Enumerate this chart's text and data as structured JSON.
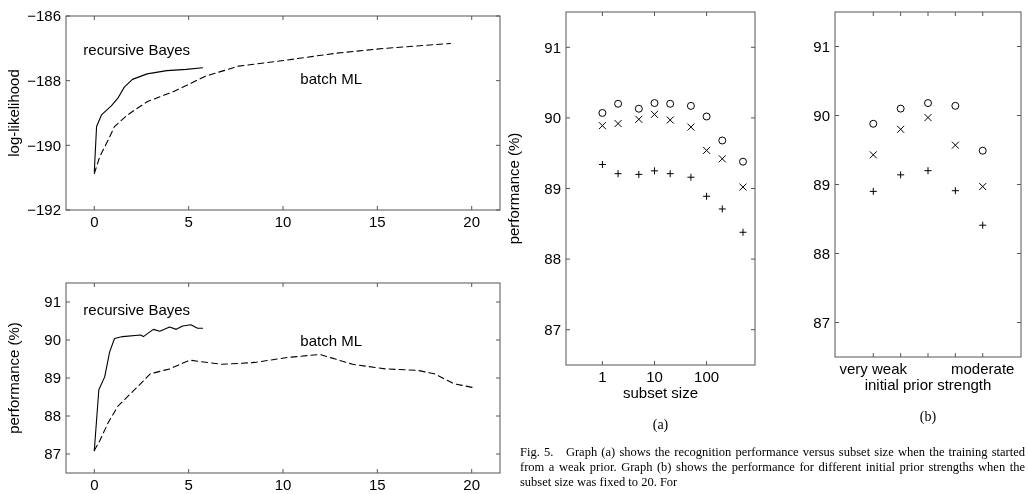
{
  "chart_data": [
    {
      "type": "line",
      "ylabel": "log-likelihood",
      "xlim": [
        -1.5,
        21.5
      ],
      "xticks": [
        0,
        5,
        10,
        15,
        20
      ],
      "ylim": [
        -192,
        -186
      ],
      "yticks": [
        -192,
        -190,
        -188,
        -186
      ],
      "series": [
        {
          "name": "recursive Bayes",
          "color": "#000000",
          "line_style": "solid",
          "x": [
            0,
            0.12,
            0.38,
            0.9,
            1.24,
            1.59,
            2.02,
            2.8,
            3.84,
            4.87,
            5.74
          ],
          "values": [
            -190.81,
            -189.42,
            -189.06,
            -188.78,
            -188.55,
            -188.2,
            -187.96,
            -187.79,
            -187.69,
            -187.65,
            -187.6
          ]
        },
        {
          "name": "batch ML",
          "color": "#000000",
          "line_style": "dashed",
          "x": [
            0,
            0.29,
            0.73,
            1.07,
            1.76,
            2.8,
            4.18,
            5.91,
            7.64,
            10.23,
            12.83,
            15.42,
            18.88
          ],
          "values": [
            -190.87,
            -190.35,
            -189.84,
            -189.42,
            -189.06,
            -188.65,
            -188.34,
            -187.86,
            -187.55,
            -187.36,
            -187.15,
            -187.0,
            -186.85
          ]
        }
      ]
    },
    {
      "type": "line",
      "ylabel": "performance (%)",
      "xlim": [
        -1.5,
        21.5
      ],
      "xticks": [
        0,
        5,
        10,
        15,
        20
      ],
      "ylim": [
        86.5,
        91.5
      ],
      "yticks": [
        87,
        88,
        89,
        90,
        91
      ],
      "series": [
        {
          "name": "recursive Bayes",
          "color": "#000000",
          "line_style": "solid",
          "x": [
            0,
            0.24,
            0.55,
            0.81,
            1.07,
            1.5,
            2.45,
            2.6,
            3.13,
            3.47,
            3.99,
            4.34,
            4.68,
            5.12,
            5.47,
            5.74
          ],
          "values": [
            87.09,
            88.69,
            89.03,
            89.68,
            90.04,
            90.09,
            90.13,
            90.09,
            90.28,
            90.23,
            90.34,
            90.28,
            90.37,
            90.4,
            90.31,
            90.31
          ]
        },
        {
          "name": "batch ML",
          "color": "#000000",
          "line_style": "dashed",
          "x": [
            0,
            0.29,
            0.73,
            1.24,
            2.11,
            2.97,
            4.0,
            5.05,
            6.78,
            8.51,
            10.24,
            11.96,
            13.69,
            15.42,
            17.15,
            18.02,
            19.06,
            20.06
          ],
          "values": [
            87.09,
            87.35,
            87.82,
            88.25,
            88.68,
            89.11,
            89.24,
            89.47,
            89.36,
            89.41,
            89.54,
            89.62,
            89.36,
            89.24,
            89.2,
            89.11,
            88.85,
            88.75
          ]
        }
      ]
    },
    {
      "type": "scatter",
      "title": "(a)",
      "xlabel": "subset size",
      "ylabel": "performance (%)",
      "log": "x",
      "xlim": [
        0.2,
        850
      ],
      "xticks": [
        1,
        10,
        100
      ],
      "ylim": [
        86.5,
        91.5
      ],
      "yticks": [
        87,
        88,
        89,
        90,
        91
      ],
      "x": [
        1,
        2,
        5,
        10,
        20,
        50,
        100,
        200,
        500
      ],
      "series": [
        {
          "color": "#000000",
          "marker": "circle",
          "values": [
            90.07,
            90.2,
            90.13,
            90.21,
            90.2,
            90.17,
            90.02,
            89.68,
            89.38
          ]
        },
        {
          "color": "#000000",
          "marker": "x",
          "values": [
            89.89,
            89.92,
            89.98,
            90.05,
            89.97,
            89.87,
            89.54,
            89.42,
            89.02
          ]
        },
        {
          "color": "#000000",
          "marker": "cross",
          "values": [
            89.34,
            89.21,
            89.2,
            89.25,
            89.21,
            89.16,
            88.89,
            88.71,
            88.38
          ]
        }
      ]
    },
    {
      "type": "scatter",
      "title": "(b)",
      "xlabel": "initial prior strength",
      "categories": [
        "very weak",
        null,
        null,
        null,
        "moderate"
      ],
      "ylim": [
        86.5,
        91.5
      ],
      "yticks": [
        87,
        88,
        89,
        90,
        91
      ],
      "series": [
        {
          "color": "#000000",
          "marker": "circle",
          "values": [
            89.88,
            90.1,
            90.18,
            90.14,
            89.49
          ]
        },
        {
          "color": "#000000",
          "marker": "x",
          "values": [
            89.43,
            89.8,
            89.97,
            89.57,
            88.97
          ]
        },
        {
          "color": "#000000",
          "marker": "cross",
          "values": [
            88.9,
            89.14,
            89.2,
            88.91,
            88.41
          ]
        }
      ]
    },
    {
      "type": "other",
      "annotations": [
        "Fig. 5.   Graph (a) shows the recognition performance versus subset size when the training started from a weak prior. Graph (b) shows the performance for different initial prior strengths when the subset size was fixed to 20. For"
      ]
    }
  ]
}
